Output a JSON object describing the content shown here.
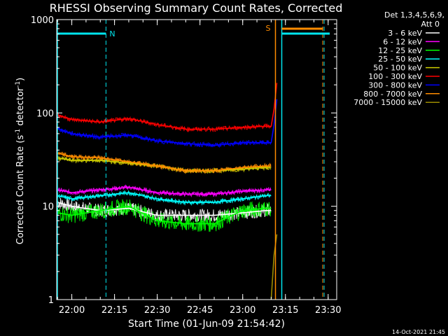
{
  "chart_data": {
    "type": "line",
    "title": "RHESSI Observing Summary Count Rates, Corrected",
    "xlabel": "Start Time (01-Jun-09 21:54:42)",
    "ylabel_main": "Corrected Count Rate (s",
    "ylabel_sup1": "-1",
    "ylabel_mid": " detector",
    "ylabel_sup2": "-1",
    "ylabel_end": ")",
    "yscale": "log",
    "ylim": [
      1,
      1000
    ],
    "xlim": [
      "21:54:42",
      "23:33:00"
    ],
    "x_ticks": [
      "22:00",
      "22:15",
      "22:30",
      "22:45",
      "23:00",
      "23:15",
      "23:30"
    ],
    "y_ticks": [
      "1",
      "10",
      "100",
      "1000"
    ],
    "legend_header": [
      "Det 1,3,4,5,6,9,",
      "Att 0"
    ],
    "footer_date": "14-Oct-2021 21:45",
    "flags": [
      {
        "label": "N",
        "color": "#00e5ee"
      },
      {
        "label": "S",
        "color": "#ff8c00"
      }
    ],
    "series": [
      {
        "name": "3 - 6 keV",
        "color": "#ffffff",
        "data": [
          [
            "21:55",
            11
          ],
          [
            "22:00",
            10
          ],
          [
            "22:10",
            9
          ],
          [
            "22:20",
            9.5
          ],
          [
            "22:30",
            8
          ],
          [
            "22:40",
            8
          ],
          [
            "22:50",
            8
          ],
          [
            "23:00",
            8.5
          ],
          [
            "23:08",
            9
          ],
          [
            "23:10",
            9
          ]
        ]
      },
      {
        "name": "6 - 12 keV",
        "color": "#ff00ff",
        "data": [
          [
            "21:55",
            15
          ],
          [
            "22:00",
            14
          ],
          [
            "22:10",
            15
          ],
          [
            "22:20",
            16
          ],
          [
            "22:30",
            14
          ],
          [
            "22:40",
            13.5
          ],
          [
            "22:50",
            13.5
          ],
          [
            "23:00",
            14.5
          ],
          [
            "23:08",
            15
          ],
          [
            "23:10",
            15
          ]
        ]
      },
      {
        "name": "12 - 25 keV",
        "color": "#00ff00",
        "data": [
          [
            "21:55",
            8.5
          ],
          [
            "22:00",
            8
          ],
          [
            "22:10",
            9
          ],
          [
            "22:20",
            10
          ],
          [
            "22:30",
            7
          ],
          [
            "22:40",
            6.5
          ],
          [
            "22:50",
            6.5
          ],
          [
            "23:00",
            9
          ],
          [
            "23:08",
            9.5
          ],
          [
            "23:10",
            9.5
          ]
        ]
      },
      {
        "name": "25 - 50 keV",
        "color": "#00ffff",
        "data": [
          [
            "21:55",
            13
          ],
          [
            "22:00",
            12
          ],
          [
            "22:10",
            13
          ],
          [
            "22:20",
            14
          ],
          [
            "22:30",
            12
          ],
          [
            "22:40",
            11
          ],
          [
            "22:50",
            11
          ],
          [
            "23:00",
            12
          ],
          [
            "23:08",
            13
          ],
          [
            "23:10",
            13
          ]
        ]
      },
      {
        "name": "50 - 100 keV",
        "color": "#cccc00",
        "data": [
          [
            "21:55",
            33
          ],
          [
            "22:00",
            31
          ],
          [
            "22:10",
            31
          ],
          [
            "22:20",
            29
          ],
          [
            "22:30",
            27
          ],
          [
            "22:40",
            24
          ],
          [
            "22:50",
            24
          ],
          [
            "23:00",
            25
          ],
          [
            "23:08",
            26
          ],
          [
            "23:10",
            26
          ]
        ]
      },
      {
        "name": "100 - 300 keV",
        "color": "#ff0000",
        "data": [
          [
            "21:55",
            95
          ],
          [
            "22:00",
            85
          ],
          [
            "22:10",
            80
          ],
          [
            "22:20",
            87
          ],
          [
            "22:30",
            75
          ],
          [
            "22:40",
            67
          ],
          [
            "22:50",
            67
          ],
          [
            "23:00",
            70
          ],
          [
            "23:08",
            72
          ],
          [
            "23:10",
            72
          ],
          [
            "23:11",
            110
          ],
          [
            "23:12",
            210
          ]
        ]
      },
      {
        "name": "300 - 800 keV",
        "color": "#0000ff",
        "data": [
          [
            "21:55",
            68
          ],
          [
            "22:00",
            60
          ],
          [
            "22:10",
            55
          ],
          [
            "22:20",
            58
          ],
          [
            "22:30",
            50
          ],
          [
            "22:40",
            47
          ],
          [
            "22:50",
            45
          ],
          [
            "23:00",
            48
          ],
          [
            "23:08",
            48
          ],
          [
            "23:10",
            48
          ],
          [
            "23:11",
            75
          ],
          [
            "23:12",
            140
          ]
        ]
      },
      {
        "name": "800 - 7000 keV",
        "color": "#ff8c00",
        "data": [
          [
            "21:55",
            37
          ],
          [
            "22:00",
            34
          ],
          [
            "22:10",
            33
          ],
          [
            "22:20",
            30
          ],
          [
            "22:30",
            27
          ],
          [
            "22:40",
            24
          ],
          [
            "22:50",
            24
          ],
          [
            "23:00",
            26
          ],
          [
            "23:08",
            27
          ],
          [
            "23:10",
            27
          ]
        ]
      },
      {
        "name": "7000 - 15000 keV",
        "color": "#9a8a00",
        "data": [
          [
            "23:10",
            1
          ],
          [
            "23:11",
            3
          ],
          [
            "23:12",
            5
          ]
        ]
      }
    ]
  }
}
